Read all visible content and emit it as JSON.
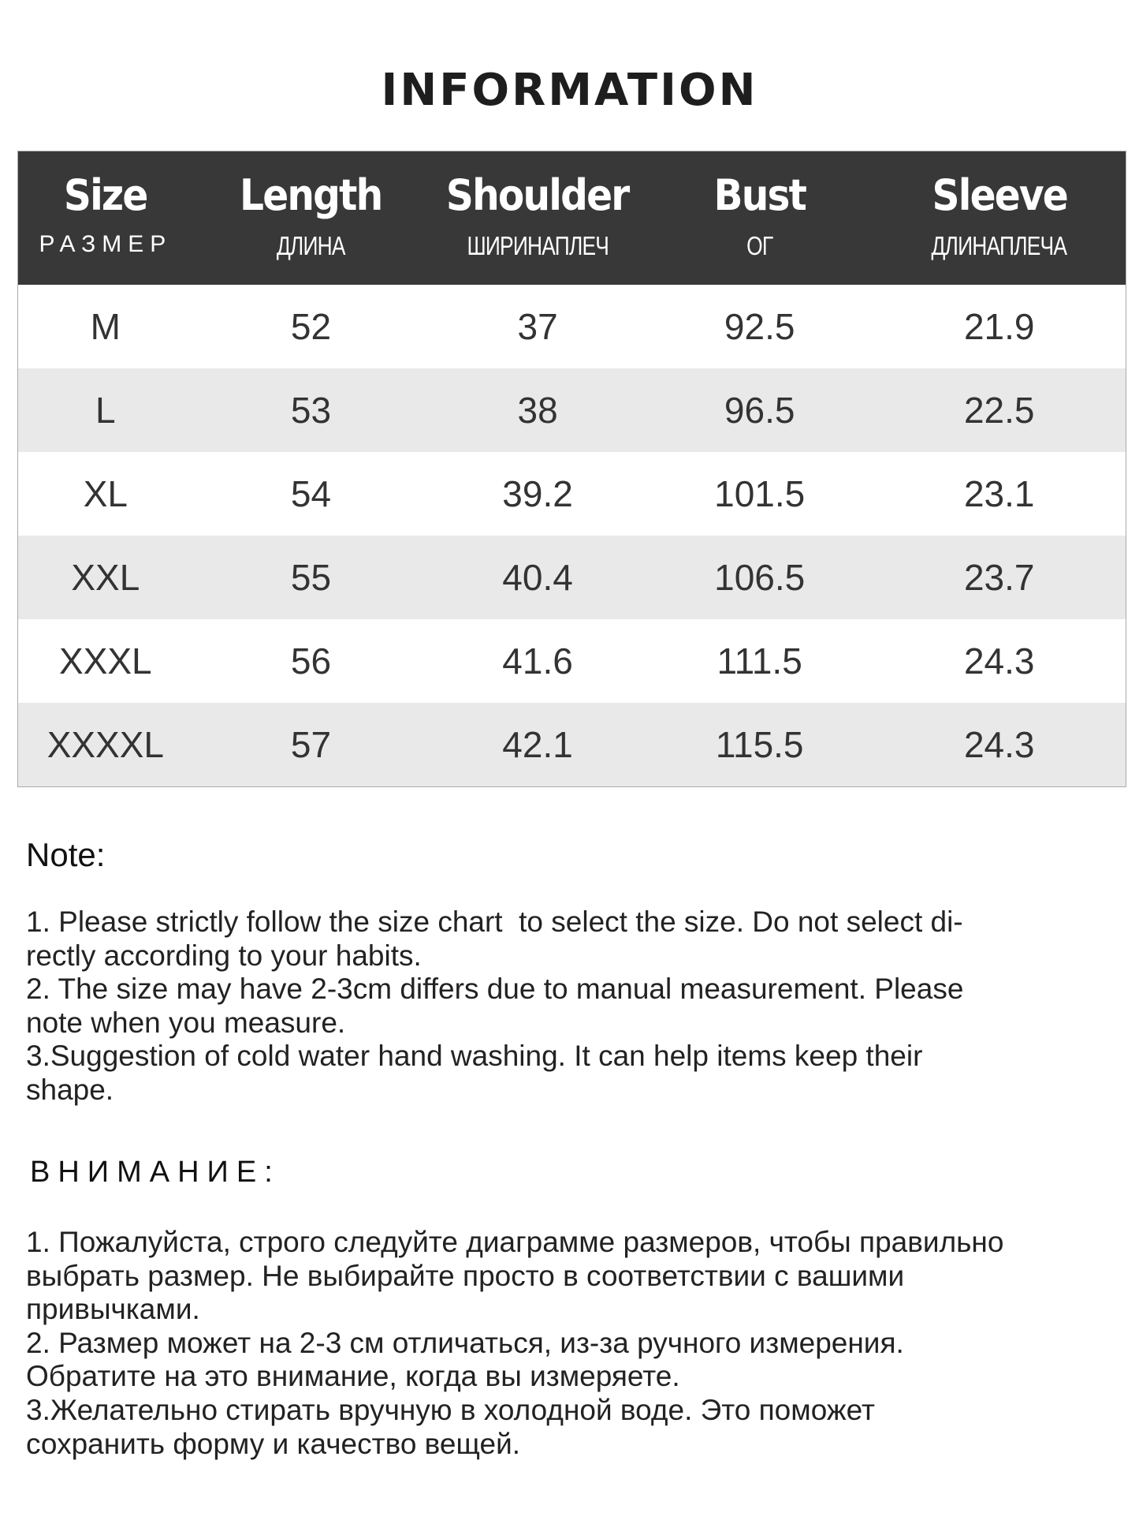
{
  "title": "INFORMATION",
  "table": {
    "headers": [
      {
        "en": "Size",
        "ru": "РАЗМЕР"
      },
      {
        "en": "Length",
        "ru": "ДЛИНА"
      },
      {
        "en": "Shoulder",
        "ru": "ШИРИНАПЛЕЧ"
      },
      {
        "en": "Bust",
        "ru": "ОГ"
      },
      {
        "en": "Sleeve",
        "ru": "ДЛИНАПЛЕЧА"
      }
    ],
    "rows": [
      [
        "M",
        "52",
        "37",
        "92.5",
        "21.9"
      ],
      [
        "L",
        "53",
        "38",
        "96.5",
        "22.5"
      ],
      [
        "XL",
        "54",
        "39.2",
        "101.5",
        "23.1"
      ],
      [
        "XXL",
        "55",
        "40.4",
        "106.5",
        "23.7"
      ],
      [
        "XXXL",
        "56",
        "41.6",
        "111.5",
        "24.3"
      ],
      [
        "XXXXL",
        "57",
        "42.1",
        "115.5",
        "24.3"
      ]
    ]
  },
  "note": {
    "heading": "Note:",
    "lines": [
      "1. Please strictly follow the size chart  to select the size. Do not select di-",
      "rectly according to your habits.",
      "2. The size may have 2-3cm differs due to manual measurement. Please",
      "note when you measure.",
      "3.Suggestion of cold water hand washing. It can help items keep their",
      "shape."
    ]
  },
  "note_ru": {
    "heading": "ВНИМАНИЕ:",
    "lines": [
      "1. Пожалуйста, строго следуйте диаграмме размеров, чтобы правильно",
      "выбрать размер. Не выбирайте просто в соответствии с вашими",
      "привычками.",
      "2. Размер может на 2-3 см отличаться, из-за ручного измерения.",
      "Обратите на это внимание, когда вы измеряете.",
      "3.Желательно стирать вручную в холодной воде. Это поможет",
      "сохранить форму и качество вещей."
    ]
  },
  "colors": {
    "header_bg": "#383838",
    "alt_row_bg": "#e9e9e9"
  }
}
